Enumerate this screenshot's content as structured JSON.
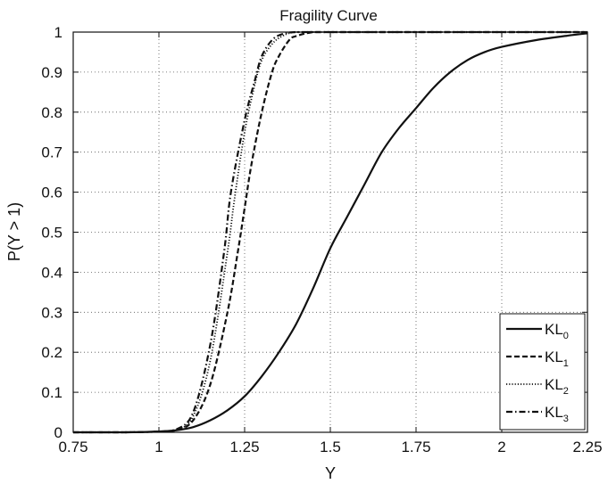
{
  "chart_data": {
    "type": "line",
    "title": "Fragility Curve",
    "xlabel": "Y",
    "ylabel": "P(Y > 1)",
    "xlim": [
      0.75,
      2.25
    ],
    "ylim": [
      0,
      1
    ],
    "xticks": [
      0.75,
      1,
      1.25,
      1.5,
      1.75,
      2,
      2.25
    ],
    "xtick_labels": [
      "0.75",
      "1",
      "1.25",
      "1.5",
      "1.75",
      "2",
      "2.25"
    ],
    "yticks": [
      0,
      0.1,
      0.2,
      0.3,
      0.4,
      0.5,
      0.6,
      0.7,
      0.8,
      0.9,
      1
    ],
    "ytick_labels": [
      "0",
      "0.1",
      "0.2",
      "0.3",
      "0.4",
      "0.5",
      "0.6",
      "0.7",
      "0.8",
      "0.9",
      "1"
    ],
    "grid": true,
    "legend_position": "bottom-right",
    "colors": {
      "line": "#111111",
      "grid": "#555555"
    },
    "series": [
      {
        "name": "KL0",
        "legend_main": "KL",
        "legend_sub": "0",
        "dash": "solid",
        "x": [
          0.75,
          0.9,
          1.0,
          1.05,
          1.1,
          1.15,
          1.2,
          1.25,
          1.3,
          1.35,
          1.4,
          1.45,
          1.5,
          1.55,
          1.6,
          1.65,
          1.7,
          1.75,
          1.8,
          1.85,
          1.9,
          1.95,
          2.0,
          2.1,
          2.2,
          2.25
        ],
        "y": [
          0.0,
          0.0,
          0.002,
          0.005,
          0.013,
          0.03,
          0.055,
          0.09,
          0.14,
          0.2,
          0.27,
          0.36,
          0.46,
          0.54,
          0.62,
          0.7,
          0.76,
          0.81,
          0.86,
          0.9,
          0.93,
          0.95,
          0.963,
          0.98,
          0.992,
          0.997
        ]
      },
      {
        "name": "KL1",
        "legend_main": "KL",
        "legend_sub": "1",
        "dash": "dashed",
        "x": [
          0.75,
          0.9,
          1.0,
          1.05,
          1.1,
          1.15,
          1.2,
          1.23,
          1.25,
          1.27,
          1.3,
          1.33,
          1.35,
          1.38,
          1.4,
          1.45,
          1.5,
          2.25
        ],
        "y": [
          0.0,
          0.0,
          0.002,
          0.005,
          0.03,
          0.12,
          0.3,
          0.45,
          0.56,
          0.67,
          0.8,
          0.9,
          0.94,
          0.98,
          0.99,
          1.0,
          1.0,
          1.0
        ]
      },
      {
        "name": "KL2",
        "legend_main": "KL",
        "legend_sub": "2",
        "dash": "dotted",
        "x": [
          0.75,
          0.9,
          1.0,
          1.05,
          1.1,
          1.15,
          1.2,
          1.22,
          1.25,
          1.28,
          1.3,
          1.33,
          1.36,
          1.4,
          1.5,
          2.25
        ],
        "y": [
          0.0,
          0.0,
          0.002,
          0.006,
          0.04,
          0.18,
          0.45,
          0.58,
          0.75,
          0.87,
          0.93,
          0.97,
          0.99,
          1.0,
          1.0,
          1.0
        ]
      },
      {
        "name": "KL3",
        "legend_main": "KL",
        "legend_sub": "3",
        "dash": "dashdot",
        "x": [
          0.75,
          0.9,
          1.0,
          1.05,
          1.1,
          1.15,
          1.19,
          1.21,
          1.25,
          1.28,
          1.3,
          1.33,
          1.36,
          1.4,
          1.5,
          2.25
        ],
        "y": [
          0.0,
          0.0,
          0.002,
          0.007,
          0.05,
          0.22,
          0.45,
          0.6,
          0.78,
          0.88,
          0.94,
          0.98,
          0.995,
          1.0,
          1.0,
          1.0
        ]
      }
    ]
  }
}
